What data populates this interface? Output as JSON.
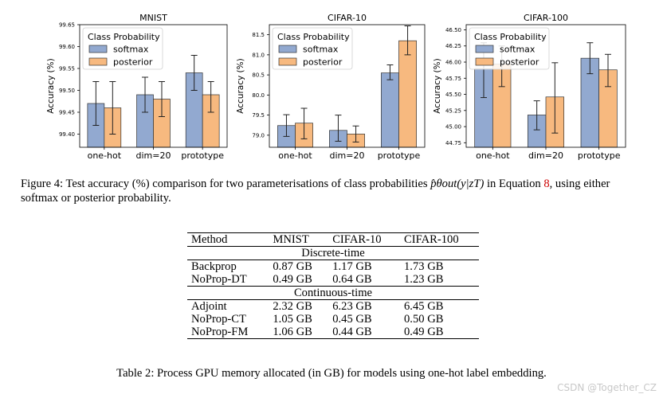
{
  "chart_data": [
    {
      "type": "bar",
      "title": "MNIST",
      "ylabel": "Accuracy (%)",
      "xlabel": "",
      "categories": [
        "one-hot",
        "dim=20",
        "prototype"
      ],
      "ylim": [
        99.37,
        99.65
      ],
      "yticks": [
        "99.40",
        "99.45",
        "99.50",
        "99.55",
        "99.60",
        "99.65"
      ],
      "legend_title": "Class Probability",
      "legend_position": "top-left",
      "series": [
        {
          "name": "softmax",
          "values": [
            99.47,
            99.49,
            99.54
          ],
          "err_low": [
            99.42,
            99.45,
            99.5
          ],
          "err_high": [
            99.52,
            99.53,
            99.58
          ]
        },
        {
          "name": "posterior",
          "values": [
            99.46,
            99.48,
            99.49
          ],
          "err_low": [
            99.4,
            99.44,
            99.45
          ],
          "err_high": [
            99.52,
            99.52,
            99.52
          ]
        }
      ]
    },
    {
      "type": "bar",
      "title": "CIFAR-10",
      "ylabel": "Accuracy (%)",
      "xlabel": "",
      "categories": [
        "one-hot",
        "dim=20",
        "prototype"
      ],
      "ylim": [
        78.7,
        81.75
      ],
      "yticks": [
        "79.0",
        "79.5",
        "80.0",
        "80.5",
        "81.0",
        "81.5"
      ],
      "legend_title": "Class Probability",
      "legend_position": "top-left",
      "series": [
        {
          "name": "softmax",
          "values": [
            79.24,
            79.12,
            80.55
          ],
          "err_low": [
            78.97,
            78.85,
            80.38
          ],
          "err_high": [
            79.51,
            79.5,
            80.75
          ]
        },
        {
          "name": "posterior",
          "values": [
            79.3,
            79.03,
            81.35
          ],
          "err_low": [
            78.91,
            78.83,
            81.0
          ],
          "err_high": [
            79.67,
            79.23,
            81.72
          ]
        }
      ]
    },
    {
      "type": "bar",
      "title": "CIFAR-100",
      "ylabel": "Accuracy (%)",
      "xlabel": "",
      "categories": [
        "one-hot",
        "dim=20",
        "prototype"
      ],
      "ylim": [
        44.68,
        46.58
      ],
      "yticks": [
        "44.75",
        "45.00",
        "45.25",
        "45.50",
        "45.75",
        "46.00",
        "46.25",
        "46.50"
      ],
      "legend_title": "Class Probability",
      "legend_position": "top-left",
      "series": [
        {
          "name": "softmax",
          "values": [
            45.9,
            45.18,
            46.06
          ],
          "err_low": [
            45.45,
            44.95,
            45.82
          ],
          "err_high": [
            46.3,
            45.4,
            46.3
          ]
        },
        {
          "name": "posterior",
          "values": [
            45.97,
            45.46,
            45.88
          ],
          "err_low": [
            45.62,
            44.9,
            45.62
          ],
          "err_high": [
            46.25,
            45.99,
            46.12
          ]
        }
      ]
    }
  ],
  "colors": {
    "softmax": "#92a9d0",
    "posterior": "#f7b97f",
    "edge": "#333333"
  },
  "figure_caption": {
    "prefix": "Figure 4: Test accuracy (%) comparison for two parameterisations of class probabilities ",
    "math": "p̂θout(y|zT)",
    "middle": " in Equation ",
    "eqref": "8",
    "suffix": ", using either softmax or posterior probability."
  },
  "table": {
    "headers": [
      "Method",
      "MNIST",
      "CIFAR-10",
      "CIFAR-100"
    ],
    "sections": [
      {
        "title": "Discrete-time",
        "rows": [
          [
            "Backprop",
            "0.87 GB",
            "1.17 GB",
            "1.73 GB"
          ],
          [
            "NoProp-DT",
            "0.49 GB",
            "0.64 GB",
            "1.23 GB"
          ]
        ]
      },
      {
        "title": "Continuous-time",
        "rows": [
          [
            "Adjoint",
            "2.32 GB",
            "6.23 GB",
            "6.45 GB"
          ],
          [
            "NoProp-CT",
            "1.05 GB",
            "0.45 GB",
            "0.50 GB"
          ],
          [
            "NoProp-FM",
            "1.06 GB",
            "0.44 GB",
            "0.49 GB"
          ]
        ]
      }
    ]
  },
  "table_caption": "Table 2: Process GPU memory allocated (in GB) for models using one-hot label embedding.",
  "watermark": "CSDN @Together_CZ"
}
